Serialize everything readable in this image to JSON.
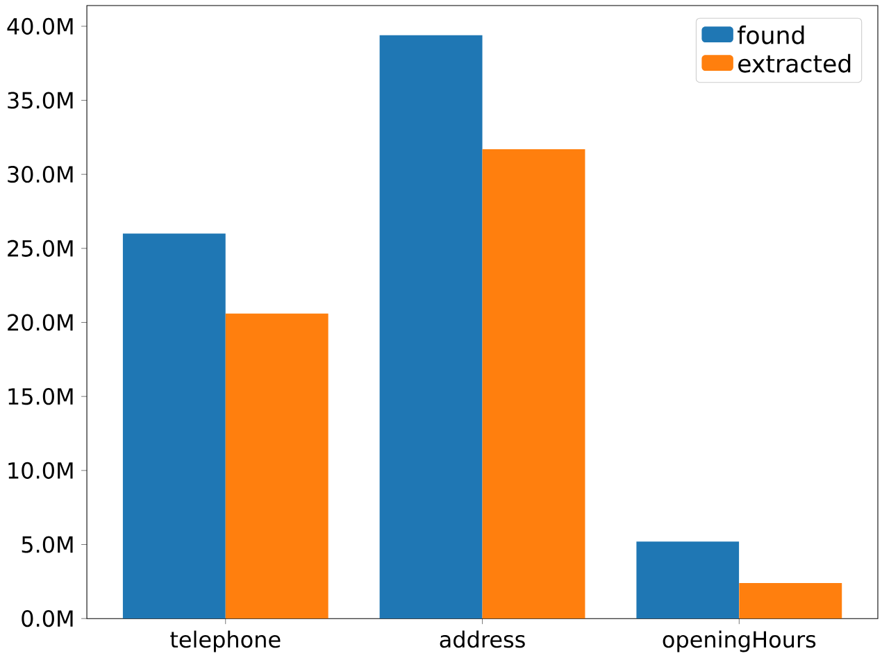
{
  "chart_data": {
    "type": "bar",
    "categories": [
      "telephone",
      "address",
      "openingHours"
    ],
    "series": [
      {
        "name": "found",
        "color": "#1f77b4",
        "values": [
          26.0,
          39.4,
          5.2
        ]
      },
      {
        "name": "extracted",
        "color": "#ff7f0e",
        "values": [
          20.6,
          31.7,
          2.4
        ]
      }
    ],
    "ylim": [
      0,
      41.4
    ],
    "yticks": [
      {
        "value": 0,
        "label": "0.0M"
      },
      {
        "value": 5,
        "label": "5.0M"
      },
      {
        "value": 10,
        "label": "10.0M"
      },
      {
        "value": 15,
        "label": "15.0M"
      },
      {
        "value": 20,
        "label": "20.0M"
      },
      {
        "value": 25,
        "label": "25.0M"
      },
      {
        "value": 30,
        "label": "30.0M"
      },
      {
        "value": 35,
        "label": "35.0M"
      },
      {
        "value": 40,
        "label": "40.0M"
      }
    ],
    "legend": "top right",
    "grid": false
  }
}
